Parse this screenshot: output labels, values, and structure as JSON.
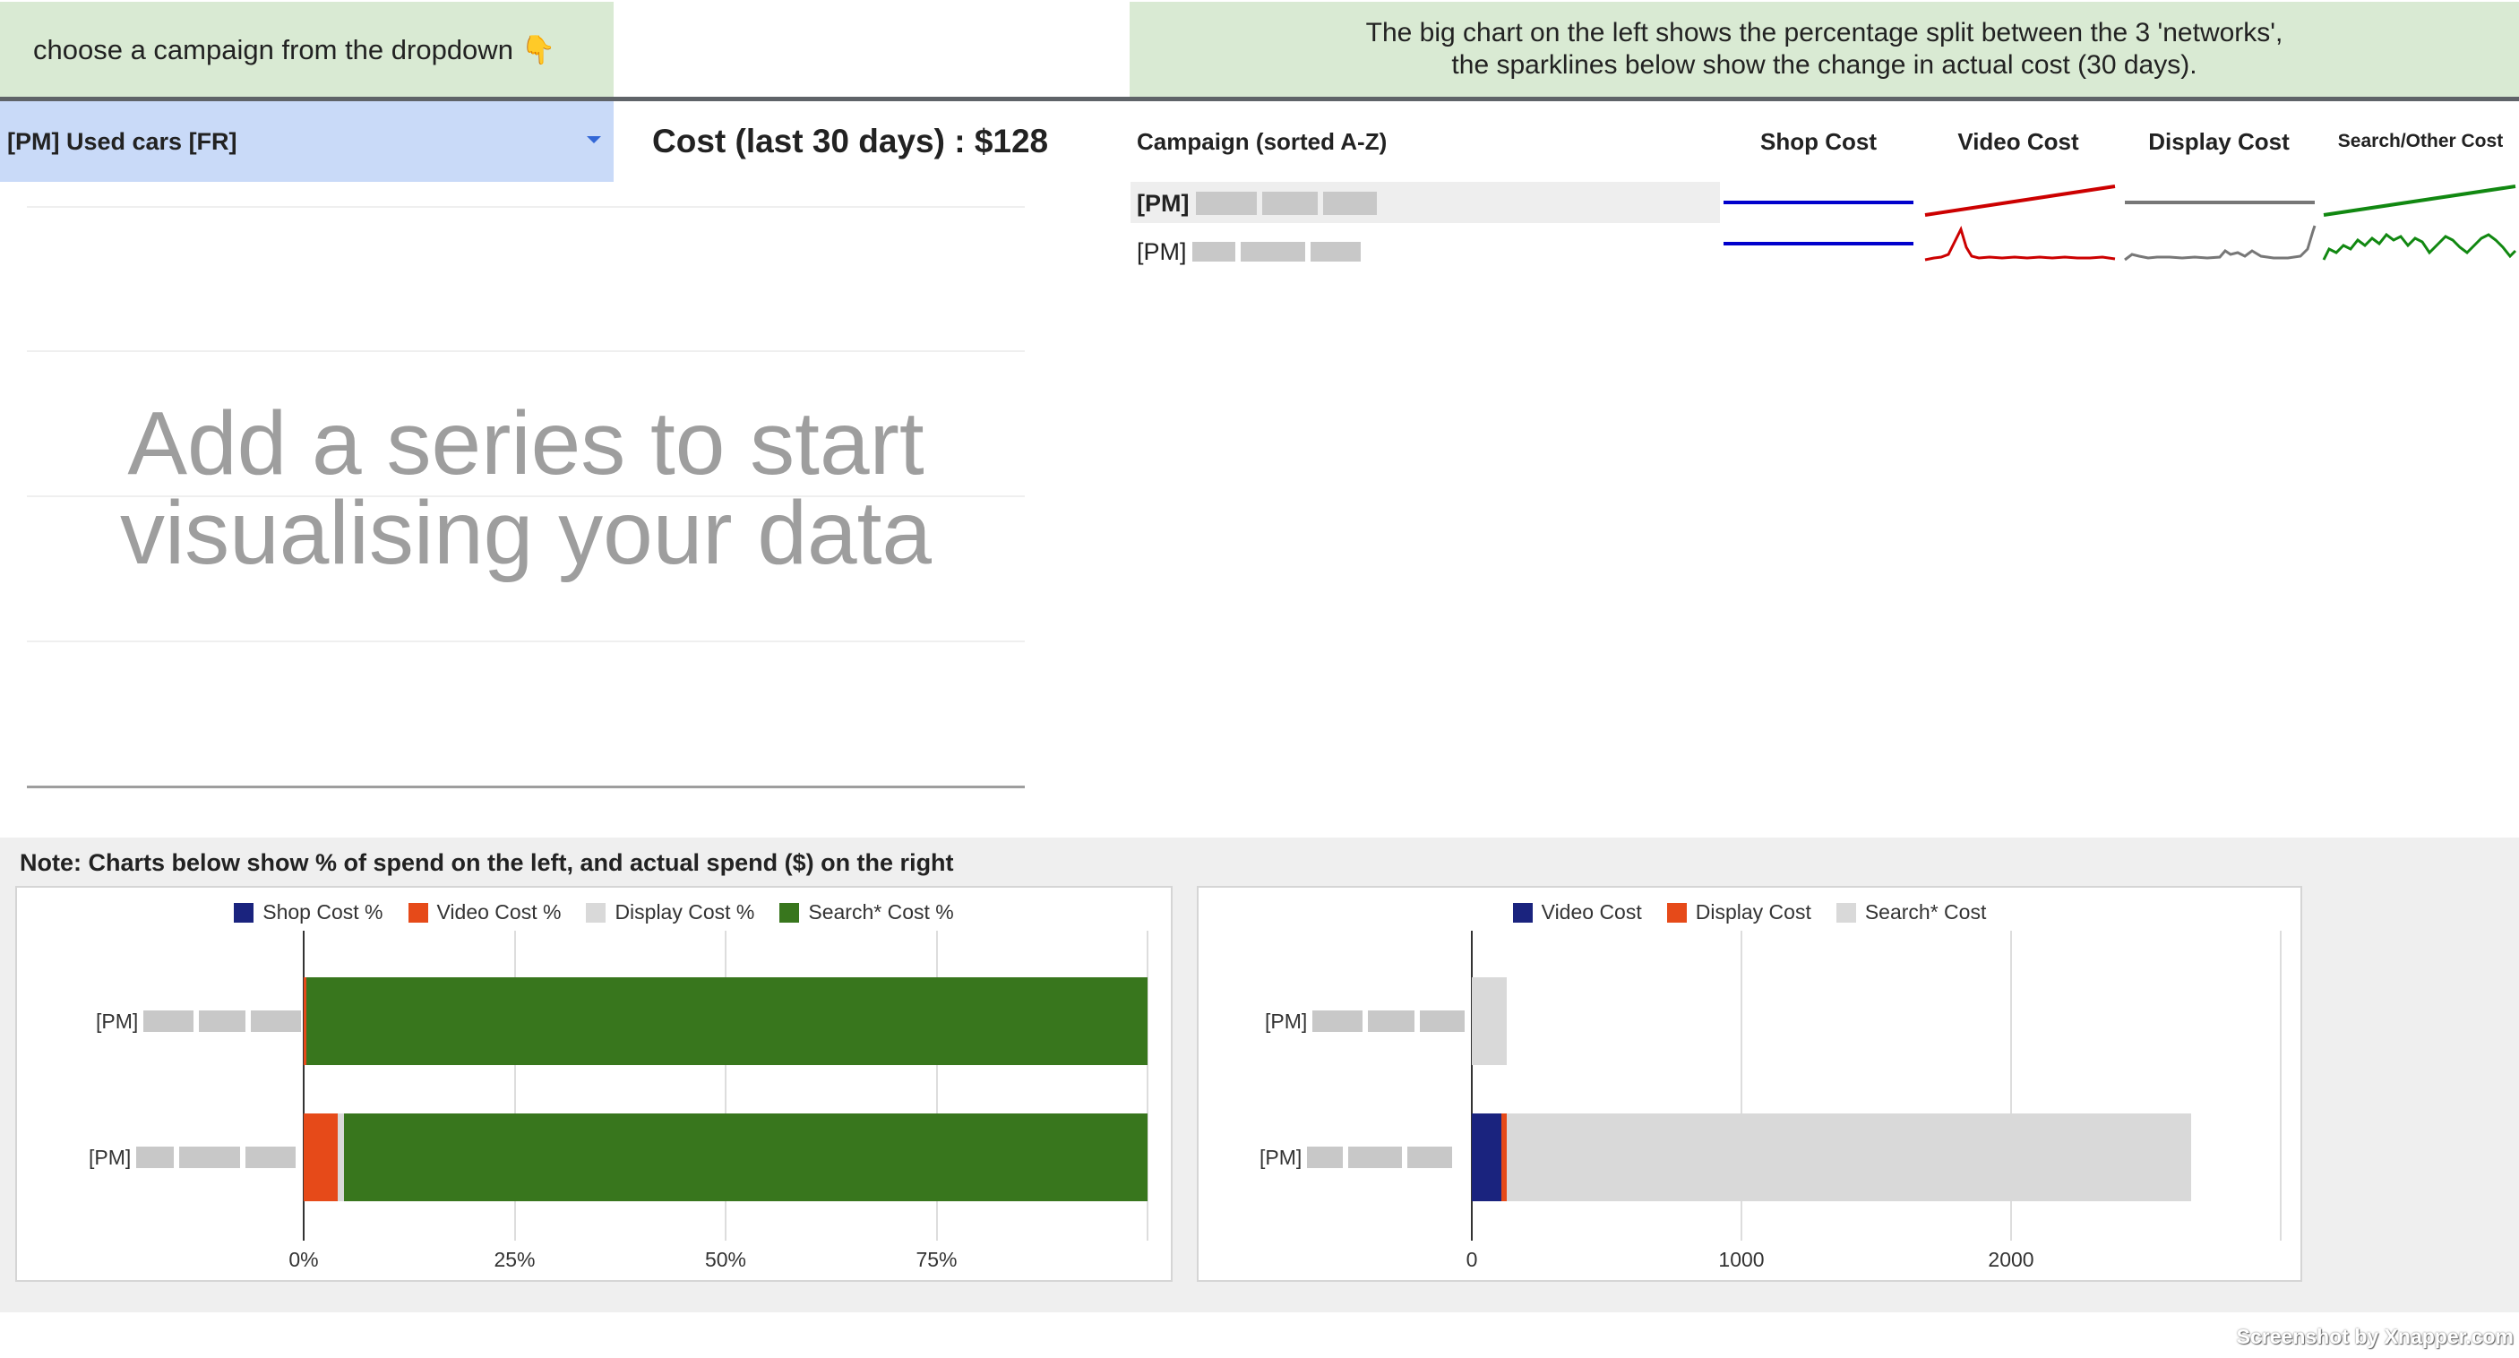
{
  "header": {
    "instruction": "choose a campaign from the dropdown 👇",
    "description_line1": "The big chart on the left shows the percentage split between the 3 'networks',",
    "description_line2": "the sparklines below show the change in actual cost (30 days)."
  },
  "campaign_select": {
    "selected": "[PM] Used cars [FR]"
  },
  "cost_summary": "Cost (last 30 days) : $128",
  "empty_chart": {
    "line1": "Add a series to start",
    "line2": "visualising your data"
  },
  "table": {
    "headers": [
      "Campaign (sorted A-Z)",
      "Shop Cost",
      "Video Cost",
      "Display Cost",
      "Search/Other Cost"
    ],
    "rows": [
      {
        "name": "[PM]"
      },
      {
        "name": "[PM]"
      }
    ],
    "colors": {
      "shop": "#0000cc",
      "video": "#cc0000",
      "display": "#777777",
      "search": "#118811"
    }
  },
  "note": "Note: Charts below show % of spend on the left, and actual spend ($) on the right",
  "chart_data": [
    {
      "type": "bar",
      "orientation": "horizontal",
      "stacked": true,
      "categories": [
        "[PM]",
        "[PM]"
      ],
      "series": [
        {
          "name": "Shop Cost %",
          "color": "#1a237e",
          "values": [
            0,
            0
          ]
        },
        {
          "name": "Video Cost %",
          "color": "#e64a19",
          "values": [
            0.3,
            4
          ]
        },
        {
          "name": "Display Cost %",
          "color": "#d9d9d9",
          "values": [
            0,
            0.8
          ]
        },
        {
          "name": "Search* Cost %",
          "color": "#38761d",
          "values": [
            99.7,
            95.2
          ]
        }
      ],
      "xticks": [
        "0%",
        "25%",
        "50%",
        "75%"
      ],
      "xlim": [
        0,
        100
      ],
      "legend": "top"
    },
    {
      "type": "bar",
      "orientation": "horizontal",
      "stacked": true,
      "categories": [
        "[PM]",
        "[PM]"
      ],
      "series": [
        {
          "name": "Video Cost",
          "color": "#1a237e",
          "values": [
            0,
            110
          ]
        },
        {
          "name": "Display Cost",
          "color": "#e64a19",
          "values": [
            0,
            18
          ]
        },
        {
          "name": "Search* Cost",
          "color": "#d9d9d9",
          "values": [
            130,
            2540
          ]
        }
      ],
      "xticks": [
        "0",
        "1000",
        "2000"
      ],
      "xlim": [
        0,
        3000
      ],
      "legend": "top"
    }
  ],
  "watermark": "Screenshot by Xnapper.com"
}
